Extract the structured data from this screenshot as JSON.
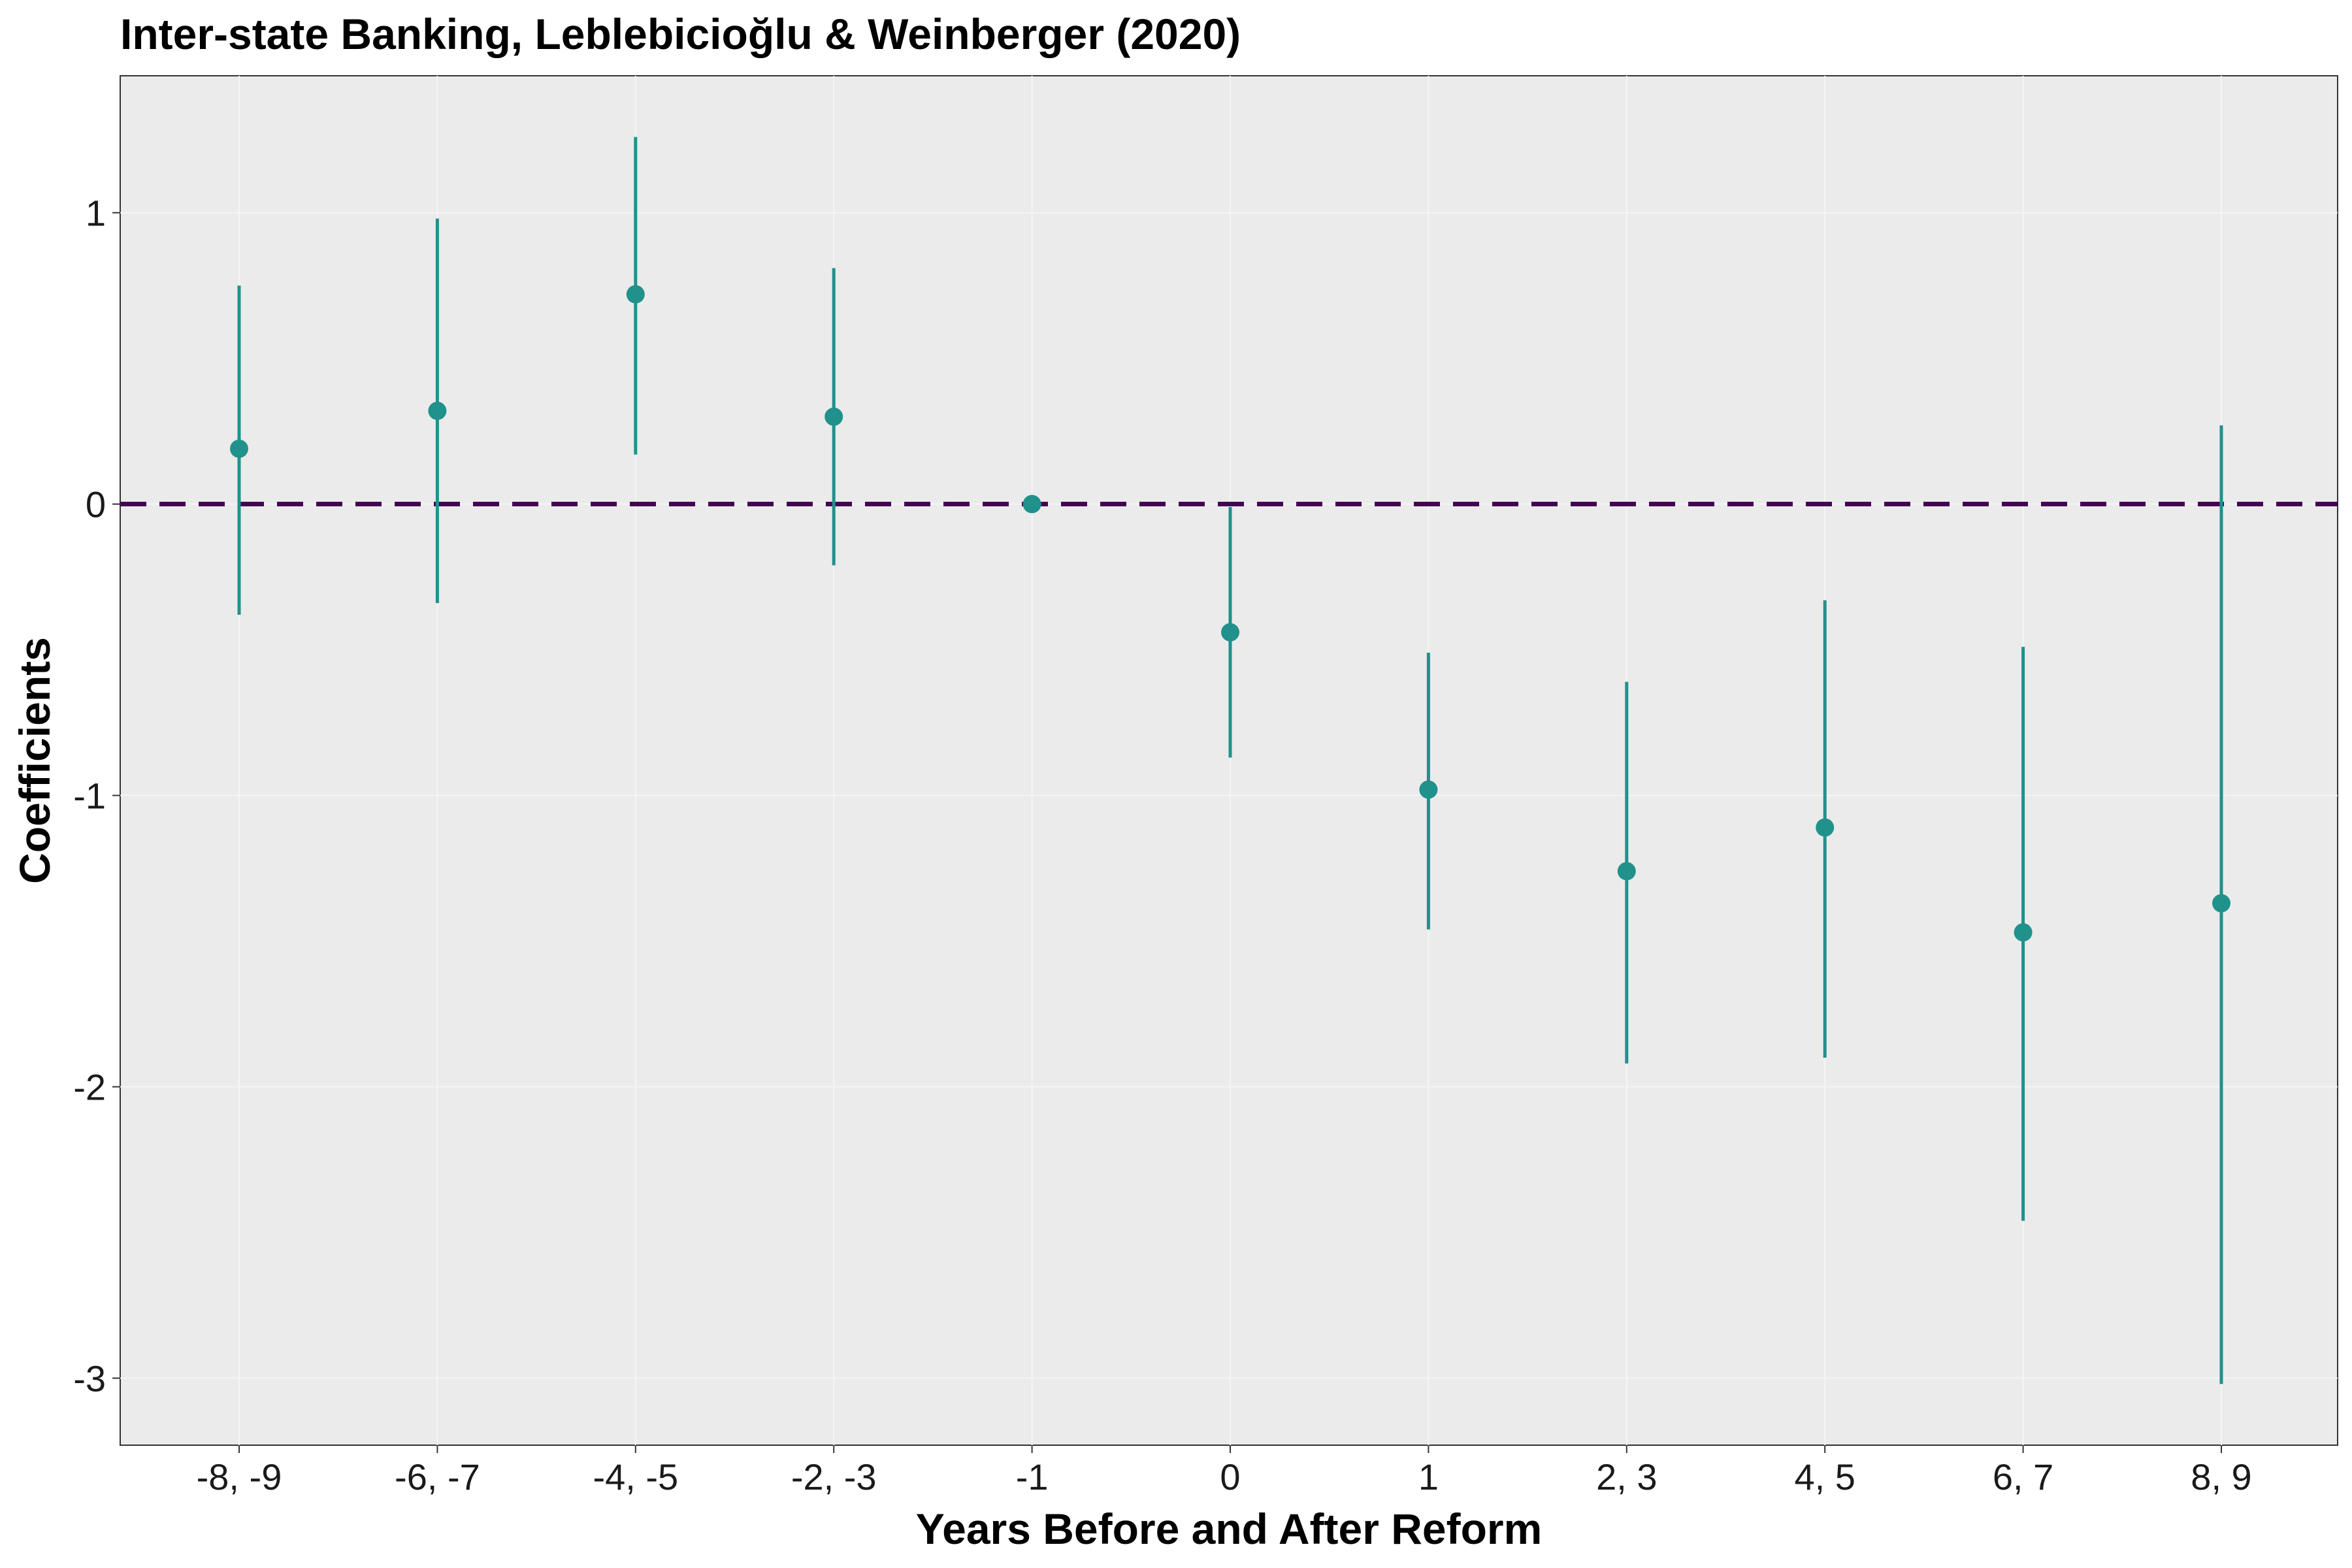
{
  "chart_data": {
    "type": "scatter",
    "title": "Inter-state Banking, Leblebicioğlu & Weinberger (2020)",
    "xlabel": "Years Before and After Reform",
    "ylabel": "Coefficients",
    "categories": [
      "-8, -9",
      "-6, -7",
      "-4, -5",
      "-2, -3",
      "-1",
      "0",
      "1",
      "2, 3",
      "4, 5",
      "6, 7",
      "8, 9"
    ],
    "series": [
      {
        "estimate": [
          0.19,
          0.32,
          0.72,
          0.3,
          0.0,
          -0.44,
          -0.98,
          -1.26,
          -1.11,
          -1.47,
          -1.37
        ],
        "ci_low": [
          -0.38,
          -0.34,
          0.17,
          -0.21,
          0.0,
          -0.87,
          -1.46,
          -1.92,
          -1.9,
          -2.46,
          -3.02
        ],
        "ci_high": [
          0.75,
          0.98,
          1.26,
          0.81,
          0.0,
          -0.01,
          -0.51,
          -0.61,
          -0.33,
          -0.49,
          0.27
        ]
      }
    ],
    "reference_line": 0,
    "ylim": [
      -3.23,
      1.47
    ],
    "yticks": [
      1,
      0,
      -1,
      -2,
      -3
    ],
    "grid": true,
    "legend": "none",
    "colors": {
      "point": "#21918c",
      "reference_line": "#440154",
      "panel": "#ebebeb",
      "grid": "#f5f5f5"
    }
  }
}
